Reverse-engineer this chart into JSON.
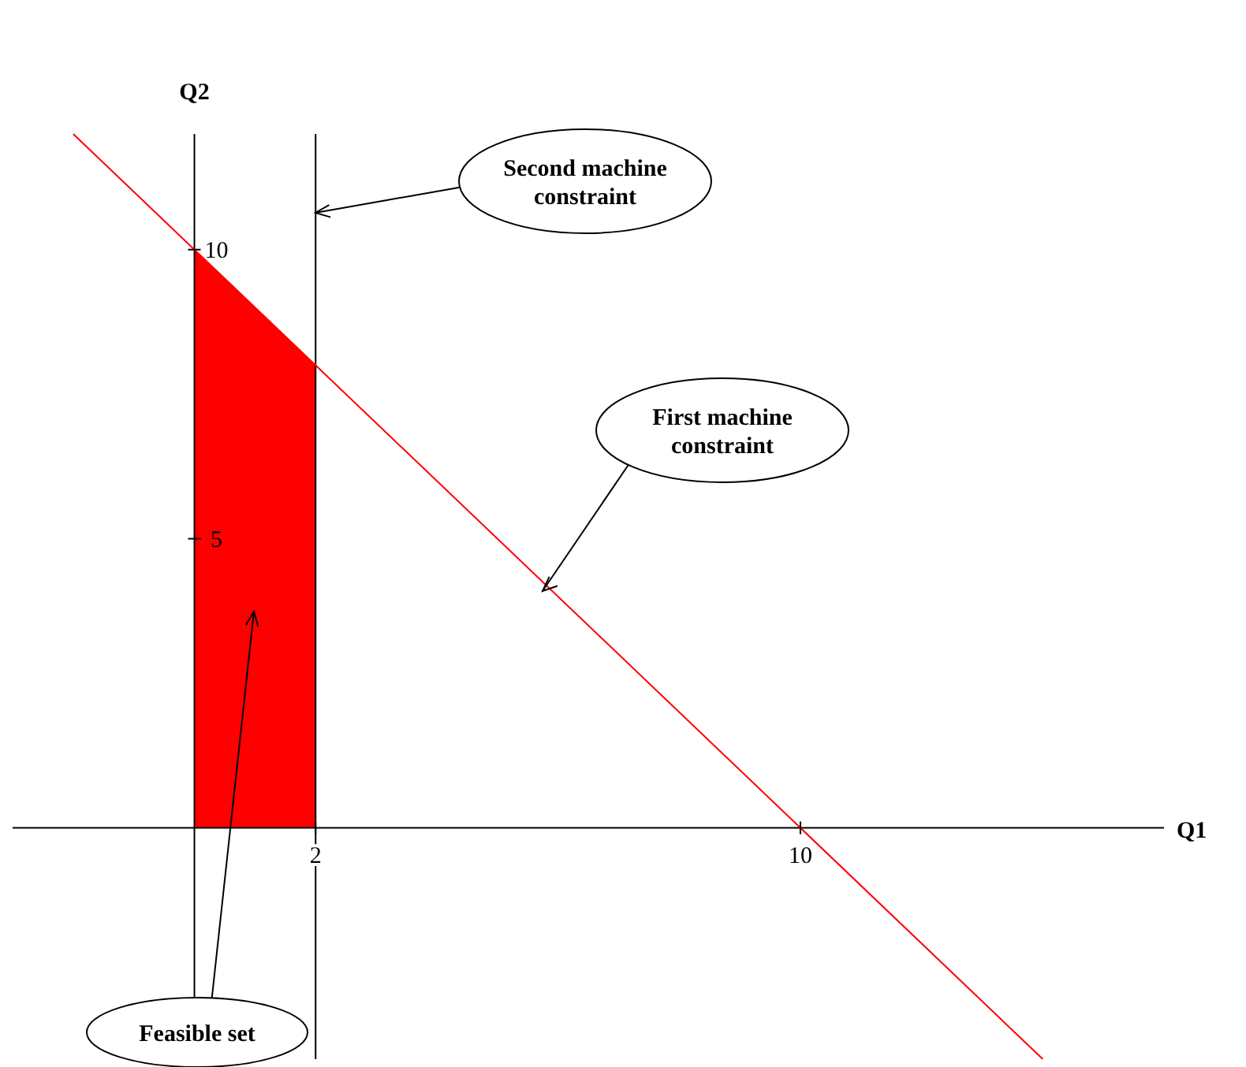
{
  "chart_data": {
    "type": "line",
    "xlabel": "Q1",
    "ylabel": "Q2",
    "xlim": [
      -3,
      16
    ],
    "ylim": [
      -4,
      12
    ],
    "xticks": [
      2,
      10
    ],
    "yticks": [
      5,
      10
    ],
    "series": [
      {
        "type": "area",
        "color": "#ff0000",
        "x": [
          0,
          2
        ],
        "values": [
          10,
          8
        ]
      },
      {
        "type": "line",
        "color": "#ff0000",
        "x": [
          -2,
          14
        ],
        "values": [
          12,
          -4
        ]
      }
    ],
    "ref_lines": [
      {
        "axis": "x",
        "value": 2,
        "color": "#000000"
      }
    ],
    "annotations": [
      "Second machine constraint",
      "First machine constraint",
      "Feasible set"
    ]
  }
}
